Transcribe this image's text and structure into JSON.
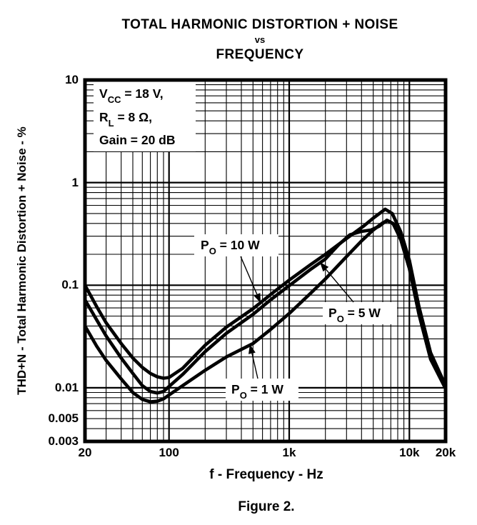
{
  "title": {
    "line1": "TOTAL HARMONIC DISTORTION + NOISE",
    "line2": "vs",
    "line3": "FREQUENCY"
  },
  "figure_caption": "Figure 2.",
  "conditions": {
    "line1": {
      "base": "V",
      "sub": "CC",
      "rest": " = 18 V,"
    },
    "line2": {
      "base": "R",
      "sub": "L",
      "rest": " = 8 Ω,"
    },
    "line3": "Gain = 20 dB"
  },
  "curve_labels": [
    {
      "base": "P",
      "sub": "O",
      "rest": " = 10 W"
    },
    {
      "base": "P",
      "sub": "O",
      "rest": " = 5 W"
    },
    {
      "base": "P",
      "sub": "O",
      "rest": " = 1 W"
    }
  ],
  "axes": {
    "x": {
      "label": "f - Frequency - Hz",
      "scale": "log",
      "min": 20,
      "max": 20000,
      "ticks": [
        {
          "label": "20",
          "value": 20
        },
        {
          "label": "100",
          "value": 100
        },
        {
          "label": "1k",
          "value": 1000
        },
        {
          "label": "10k",
          "value": 10000
        },
        {
          "label": "20k",
          "value": 20000
        }
      ]
    },
    "y": {
      "label": "THD+N - Total Harmonic Distortion + Noise - %",
      "scale": "log",
      "min": 0.003,
      "max": 10,
      "ticks": [
        {
          "label": "10",
          "value": 10
        },
        {
          "label": "1",
          "value": 1
        },
        {
          "label": "0.1",
          "value": 0.1
        },
        {
          "label": "0.01",
          "value": 0.01
        },
        {
          "label": "0.005",
          "value": 0.005
        },
        {
          "label": "0.003",
          "value": 0.003
        }
      ]
    }
  },
  "colors": {
    "line": "#000000",
    "grid": "#000000",
    "background": "#ffffff"
  },
  "chart_data": {
    "type": "line",
    "title": "TOTAL HARMONIC DISTORTION + NOISE vs FREQUENCY",
    "xlabel": "f - Frequency - Hz",
    "ylabel": "THD+N - Total Harmonic Distortion + Noise - %",
    "x_scale": "log",
    "y_scale": "log",
    "xlim": [
      20,
      20000
    ],
    "ylim": [
      0.003,
      10
    ],
    "grid": "log-log minor and major gridlines",
    "conditions": [
      "VCC = 18 V",
      "RL = 8 ohm",
      "Gain = 20 dB"
    ],
    "series": [
      {
        "name": "PO = 10 W",
        "points": [
          [
            20,
            0.1
          ],
          [
            25,
            0.062
          ],
          [
            30,
            0.043
          ],
          [
            40,
            0.027
          ],
          [
            50,
            0.0195
          ],
          [
            60,
            0.0158
          ],
          [
            70,
            0.0138
          ],
          [
            80,
            0.0128
          ],
          [
            90,
            0.0124
          ],
          [
            100,
            0.0126
          ],
          [
            130,
            0.0155
          ],
          [
            200,
            0.026
          ],
          [
            300,
            0.039
          ],
          [
            500,
            0.059
          ],
          [
            700,
            0.081
          ],
          [
            1000,
            0.112
          ],
          [
            1500,
            0.158
          ],
          [
            2000,
            0.2
          ],
          [
            3000,
            0.285
          ],
          [
            4200,
            0.38
          ],
          [
            5000,
            0.45
          ],
          [
            6300,
            0.55
          ],
          [
            7200,
            0.5
          ],
          [
            8500,
            0.33
          ],
          [
            10000,
            0.175
          ],
          [
            12000,
            0.062
          ],
          [
            15000,
            0.022
          ],
          [
            20000,
            0.0105
          ]
        ]
      },
      {
        "name": "PO = 5 W",
        "points": [
          [
            20,
            0.072
          ],
          [
            25,
            0.046
          ],
          [
            30,
            0.032
          ],
          [
            40,
            0.0195
          ],
          [
            50,
            0.0138
          ],
          [
            60,
            0.0105
          ],
          [
            70,
            0.0092
          ],
          [
            80,
            0.0089
          ],
          [
            90,
            0.0092
          ],
          [
            100,
            0.0103
          ],
          [
            130,
            0.0135
          ],
          [
            200,
            0.0225
          ],
          [
            300,
            0.034
          ],
          [
            500,
            0.052
          ],
          [
            700,
            0.072
          ],
          [
            1000,
            0.099
          ],
          [
            1500,
            0.142
          ],
          [
            2000,
            0.18
          ],
          [
            2600,
            0.25
          ],
          [
            3200,
            0.31
          ],
          [
            4000,
            0.335
          ],
          [
            4800,
            0.345
          ],
          [
            5600,
            0.375
          ],
          [
            6500,
            0.43
          ],
          [
            7300,
            0.4
          ],
          [
            8500,
            0.28
          ],
          [
            10000,
            0.15
          ],
          [
            12000,
            0.055
          ],
          [
            15000,
            0.02
          ],
          [
            20000,
            0.01
          ]
        ]
      },
      {
        "name": "PO = 1 W",
        "points": [
          [
            20,
            0.04
          ],
          [
            25,
            0.0255
          ],
          [
            30,
            0.0185
          ],
          [
            40,
            0.0122
          ],
          [
            50,
            0.009
          ],
          [
            60,
            0.0077
          ],
          [
            70,
            0.0073
          ],
          [
            80,
            0.0074
          ],
          [
            90,
            0.0078
          ],
          [
            100,
            0.0085
          ],
          [
            130,
            0.0105
          ],
          [
            200,
            0.0148
          ],
          [
            300,
            0.02
          ],
          [
            500,
            0.027
          ],
          [
            700,
            0.037
          ],
          [
            1000,
            0.053
          ],
          [
            1500,
            0.083
          ],
          [
            2000,
            0.115
          ],
          [
            3000,
            0.19
          ],
          [
            4000,
            0.27
          ],
          [
            5000,
            0.345
          ],
          [
            6000,
            0.405
          ],
          [
            6600,
            0.425
          ],
          [
            7400,
            0.395
          ],
          [
            8500,
            0.275
          ],
          [
            10000,
            0.145
          ],
          [
            12000,
            0.052
          ],
          [
            15000,
            0.019
          ],
          [
            20000,
            0.0098
          ]
        ]
      }
    ]
  }
}
